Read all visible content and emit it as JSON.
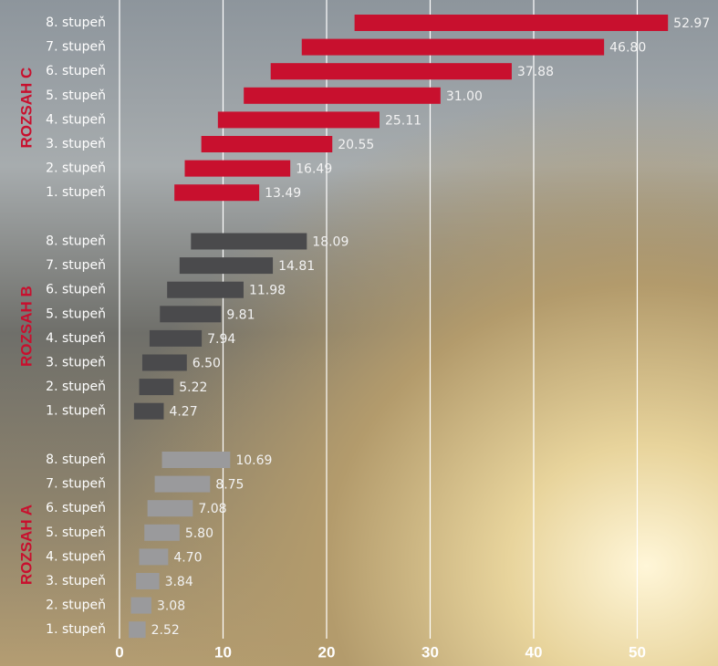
{
  "chart_data": {
    "type": "floating-bar",
    "categories": [
      "8. stupeň",
      "7. stupeň",
      "6. stupeň",
      "5. stupeň",
      "4. stupeň",
      "3. stupeň",
      "2. stupeň",
      "1. stupeň"
    ],
    "series": [
      {
        "name": "ROZSAH C",
        "color": "#c8102e",
        "start": [
          22.7,
          17.6,
          14.6,
          12.0,
          9.5,
          7.9,
          6.3,
          5.3
        ],
        "values": [
          52.97,
          46.8,
          37.88,
          31.0,
          25.11,
          20.55,
          16.49,
          13.49
        ],
        "value_labels": [
          "52.97",
          "46.80",
          "37.88",
          "31.00",
          "25.11",
          "20.55",
          "16.49",
          "13.49"
        ]
      },
      {
        "name": "ROZSAH B",
        "color": "#4a4a4c",
        "start": [
          6.9,
          5.8,
          4.6,
          3.9,
          2.9,
          2.2,
          1.9,
          1.4
        ],
        "values": [
          18.09,
          14.81,
          11.98,
          9.81,
          7.94,
          6.5,
          5.22,
          4.27
        ],
        "value_labels": [
          "18.09",
          "14.81",
          "11.98",
          "9.81",
          "7.94",
          "6.50",
          "5.22",
          "4.27"
        ]
      },
      {
        "name": "ROZSAH A",
        "color": "#9a9a9c",
        "start": [
          4.1,
          3.4,
          2.7,
          2.4,
          1.9,
          1.6,
          1.1,
          0.9
        ],
        "values": [
          10.69,
          8.75,
          7.08,
          5.8,
          4.7,
          3.84,
          3.08,
          2.52
        ],
        "value_labels": [
          "10.69",
          "8.75",
          "7.08",
          "5.80",
          "4.70",
          "3.84",
          "3.08",
          "2.52"
        ]
      }
    ],
    "xlim": [
      0,
      57.8
    ],
    "xticks": [
      0,
      10,
      20,
      30,
      40,
      50
    ],
    "grid": true
  }
}
